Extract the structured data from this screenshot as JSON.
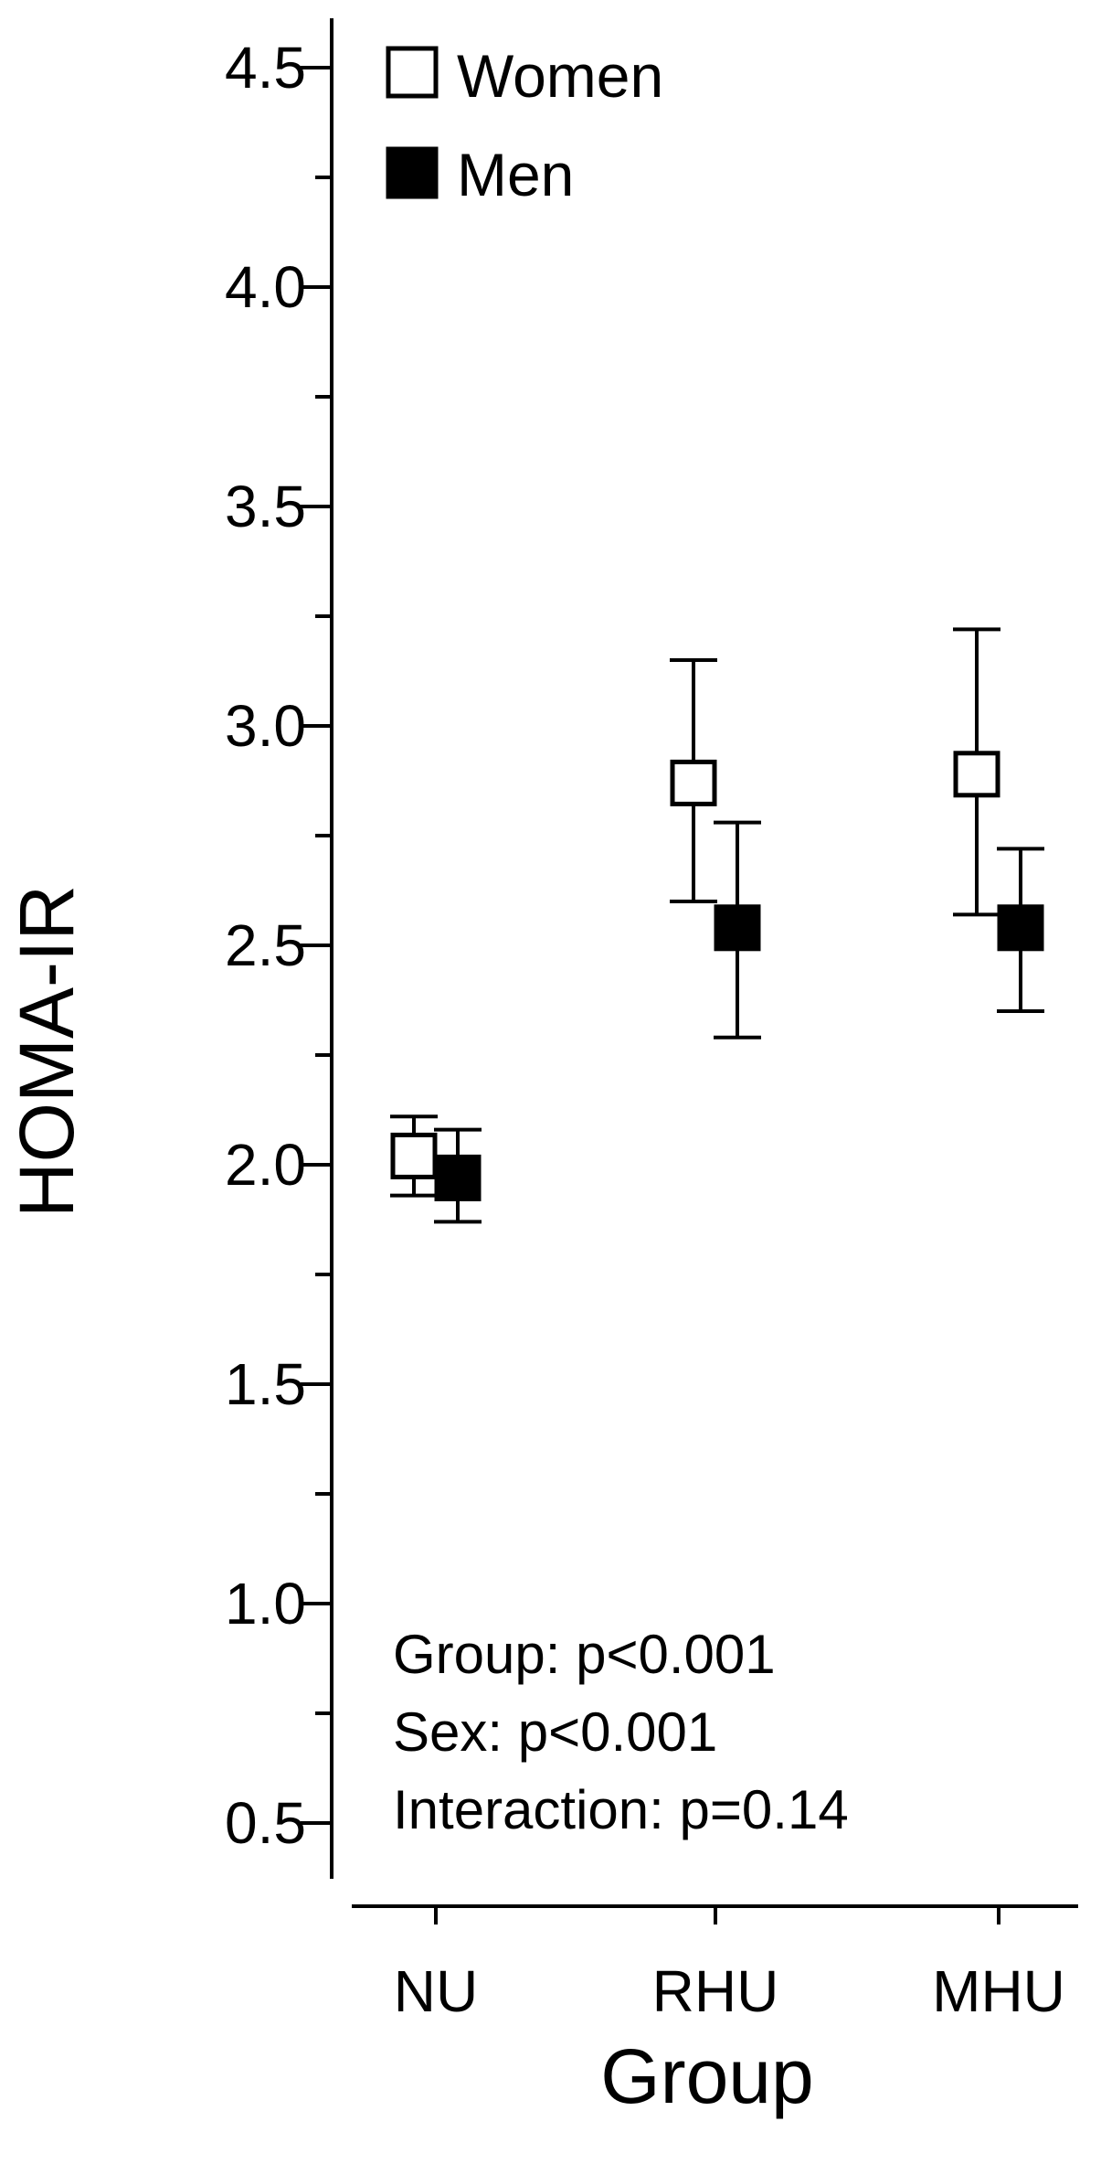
{
  "chart_data": {
    "type": "scatter",
    "xlabel": "Group",
    "ylabel": "HOMA-IR",
    "categories": [
      "NU",
      "RHU",
      "MHU"
    ],
    "ylim": [
      0.3,
      4.6
    ],
    "yticks": [
      "0.5",
      "1.0",
      "1.5",
      "2.0",
      "2.5",
      "3.0",
      "3.5",
      "4.0",
      "4.5"
    ],
    "grid": false,
    "legend_position": "top-left",
    "series": [
      {
        "name": "Women",
        "marker": "open-square",
        "values": [
          2.02,
          2.87,
          2.89
        ],
        "error_low": [
          1.93,
          2.6,
          2.57
        ],
        "error_high": [
          2.11,
          3.15,
          3.22
        ]
      },
      {
        "name": "Men",
        "marker": "filled-square",
        "values": [
          1.97,
          2.54,
          2.54
        ],
        "error_low": [
          1.87,
          2.29,
          2.35
        ],
        "error_high": [
          2.08,
          2.78,
          2.72
        ]
      }
    ],
    "annotations": [
      "Group: p<0.001",
      "Sex: p<0.001",
      "Interaction: p=0.14"
    ]
  }
}
